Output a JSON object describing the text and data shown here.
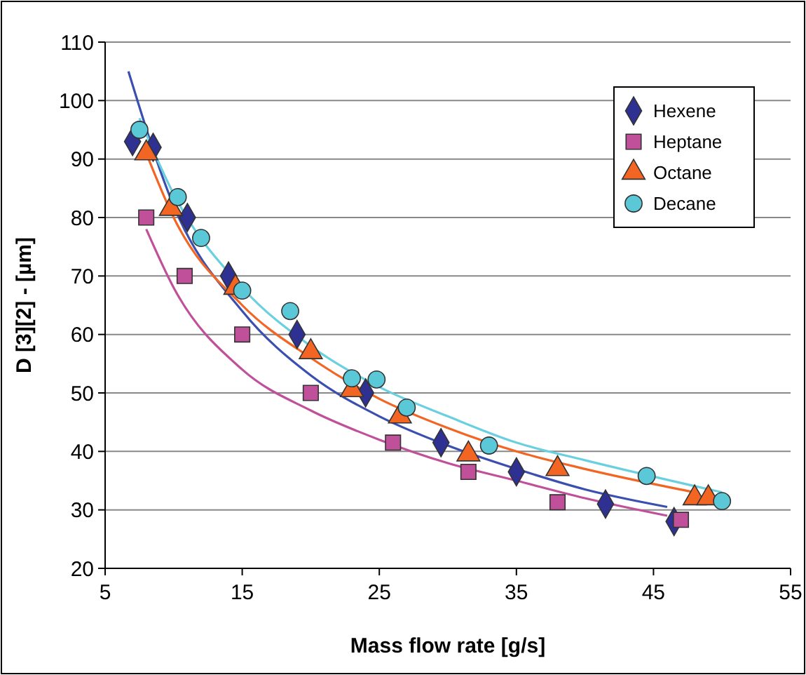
{
  "chart_data": {
    "type": "scatter",
    "xlabel": "Mass flow rate [g/s]",
    "ylabel": "D [3][2] - [µm]",
    "xlim": [
      5,
      55
    ],
    "xticks": [
      5,
      15,
      25,
      35,
      45,
      55
    ],
    "ylim": [
      20,
      110
    ],
    "yticks": [
      20,
      30,
      40,
      50,
      60,
      70,
      80,
      90,
      100,
      110
    ],
    "grid": "y",
    "legend": "top right",
    "series": [
      {
        "name": "Hexene",
        "color": "#2e3192",
        "marker": "diamond",
        "x": [
          7,
          8.5,
          11,
          14,
          19,
          24,
          29.5,
          35,
          41.5,
          46.5
        ],
        "values": [
          93,
          92,
          80,
          70,
          60,
          50,
          41.5,
          36.5,
          31,
          28
        ]
      },
      {
        "name": "Heptane",
        "color": "#c0509a",
        "marker": "square",
        "x": [
          8,
          10.8,
          15,
          20,
          26,
          31.5,
          38,
          47
        ],
        "values": [
          80,
          70,
          60,
          50,
          41.5,
          36.5,
          31.3,
          28.3
        ]
      },
      {
        "name": "Octane",
        "color": "#f26522",
        "marker": "triangle",
        "x": [
          8,
          9.8,
          14.5,
          20,
          23,
          26.5,
          31.5,
          38,
          48,
          49
        ],
        "values": [
          91,
          81.5,
          68,
          57,
          50.5,
          46,
          39.5,
          37,
          32,
          32
        ]
      },
      {
        "name": "Decane",
        "color": "#5bc8d8",
        "marker": "circle",
        "x": [
          7.5,
          10.3,
          12,
          15,
          18.5,
          23,
          24.8,
          27,
          33,
          44.5,
          50
        ],
        "values": [
          95,
          83.5,
          76.5,
          67.5,
          64,
          52.5,
          52.3,
          47.5,
          41,
          35.8,
          31.5
        ]
      },
      {
        "type": "line",
        "color": "#3a4fb0",
        "x": [
          6.7,
          10,
          15,
          20,
          25,
          30,
          35,
          40,
          46
        ],
        "values": [
          105,
          82,
          64,
          53,
          46,
          41,
          37,
          33.5,
          30.5
        ]
      },
      {
        "type": "line",
        "color": "#c0509a",
        "x": [
          8,
          10,
          15,
          20,
          25,
          30,
          35,
          40,
          46
        ],
        "values": [
          78,
          68,
          54,
          47,
          42,
          38,
          35,
          32,
          29
        ]
      },
      {
        "type": "line",
        "color": "#f26522",
        "x": [
          8,
          10,
          15,
          20,
          25,
          30,
          35,
          40,
          48
        ],
        "values": [
          91,
          80,
          65,
          56,
          49,
          44,
          40,
          37,
          33
        ]
      },
      {
        "type": "line",
        "color": "#6ad0e0",
        "x": [
          7.5,
          10,
          15,
          20,
          25,
          30,
          35,
          40,
          50
        ],
        "values": [
          97,
          84,
          68,
          58,
          51,
          46,
          41.5,
          38.5,
          33
        ]
      }
    ]
  }
}
